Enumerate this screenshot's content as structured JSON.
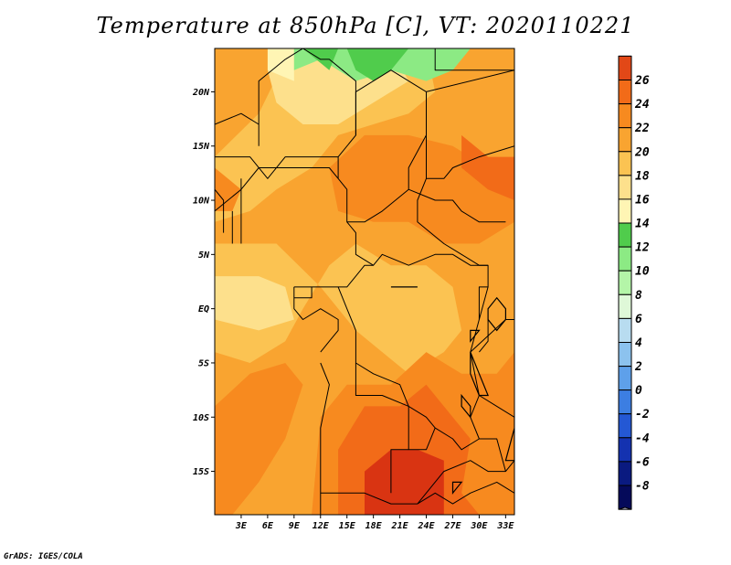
{
  "title": "Temperature at 850hPa [C], VT: 2020110221",
  "credit": "GrADS: IGES/COLA",
  "map": {
    "lon_range": [
      0,
      34
    ],
    "lat_range": [
      -19,
      24
    ],
    "lon_ticks": [
      {
        "value": 3,
        "label": "3E"
      },
      {
        "value": 6,
        "label": "6E"
      },
      {
        "value": 9,
        "label": "9E"
      },
      {
        "value": 12,
        "label": "12E"
      },
      {
        "value": 15,
        "label": "15E"
      },
      {
        "value": 18,
        "label": "18E"
      },
      {
        "value": 21,
        "label": "21E"
      },
      {
        "value": 24,
        "label": "24E"
      },
      {
        "value": 27,
        "label": "27E"
      },
      {
        "value": 30,
        "label": "30E"
      },
      {
        "value": 33,
        "label": "33E"
      }
    ],
    "lat_ticks": [
      {
        "value": 20,
        "label": "20N"
      },
      {
        "value": 15,
        "label": "15N"
      },
      {
        "value": 10,
        "label": "10N"
      },
      {
        "value": 5,
        "label": "5N"
      },
      {
        "value": 0,
        "label": "EQ"
      },
      {
        "value": -5,
        "label": "5S"
      },
      {
        "value": -10,
        "label": "10S"
      },
      {
        "value": -15,
        "label": "15S"
      }
    ],
    "regions": [
      {
        "level": 20,
        "color": "#f9a430",
        "points": [
          [
            0,
            24
          ],
          [
            34,
            24
          ],
          [
            34,
            -19
          ],
          [
            0,
            -19
          ]
        ]
      },
      {
        "level": 18,
        "color": "#fbc352",
        "points": [
          [
            0,
            14
          ],
          [
            5,
            18
          ],
          [
            8,
            23
          ],
          [
            16,
            24
          ],
          [
            24,
            24
          ],
          [
            25,
            20
          ],
          [
            22,
            18
          ],
          [
            18,
            17
          ],
          [
            14,
            16
          ],
          [
            11,
            13
          ],
          [
            7,
            11
          ],
          [
            4,
            9
          ],
          [
            0,
            8
          ]
        ]
      },
      {
        "level": 16,
        "color": "#fde08c",
        "points": [
          [
            6,
            22
          ],
          [
            9,
            24
          ],
          [
            20,
            24
          ],
          [
            22,
            21
          ],
          [
            18,
            19
          ],
          [
            14,
            17
          ],
          [
            10,
            17
          ],
          [
            7,
            19
          ]
        ]
      },
      {
        "level": 18,
        "color": "#fbc352",
        "points": [
          [
            0,
            6
          ],
          [
            7,
            6
          ],
          [
            12,
            2
          ],
          [
            16,
            -2
          ],
          [
            19,
            -4
          ],
          [
            22,
            -6
          ],
          [
            26,
            -4
          ],
          [
            28,
            -2
          ],
          [
            27,
            2
          ],
          [
            24,
            4
          ],
          [
            20,
            4
          ],
          [
            16,
            6
          ],
          [
            13,
            4
          ],
          [
            10,
            0
          ],
          [
            8,
            -3
          ],
          [
            4,
            -5
          ],
          [
            0,
            -4
          ]
        ]
      },
      {
        "level": 16,
        "color": "#fde08c",
        "points": [
          [
            0,
            3
          ],
          [
            5,
            3
          ],
          [
            8,
            2
          ],
          [
            9,
            -1
          ],
          [
            5,
            -2
          ],
          [
            0,
            -1
          ]
        ]
      },
      {
        "level": 22,
        "color": "#f78a1f",
        "points": [
          [
            13,
            13
          ],
          [
            17,
            16
          ],
          [
            22,
            16
          ],
          [
            27,
            15
          ],
          [
            31,
            13
          ],
          [
            34,
            13
          ],
          [
            34,
            8
          ],
          [
            30,
            6
          ],
          [
            26,
            6
          ],
          [
            22,
            8
          ],
          [
            18,
            8
          ],
          [
            14,
            9
          ]
        ]
      },
      {
        "level": 24,
        "color": "#f26b18",
        "points": [
          [
            28,
            16
          ],
          [
            31,
            14
          ],
          [
            34,
            14
          ],
          [
            34,
            10
          ],
          [
            31,
            11
          ],
          [
            28,
            13
          ]
        ]
      },
      {
        "level": 22,
        "color": "#f78a1f",
        "points": [
          [
            0,
            13
          ],
          [
            3,
            11
          ],
          [
            2,
            9
          ],
          [
            0,
            9
          ]
        ]
      },
      {
        "level": 22,
        "color": "#f78a1f",
        "points": [
          [
            0,
            -9
          ],
          [
            4,
            -6
          ],
          [
            8,
            -5
          ],
          [
            10,
            -7
          ],
          [
            8,
            -12
          ],
          [
            5,
            -16
          ],
          [
            2,
            -19
          ],
          [
            0,
            -19
          ]
        ]
      },
      {
        "level": 22,
        "color": "#f78a1f",
        "points": [
          [
            11,
            -19
          ],
          [
            12,
            -10
          ],
          [
            15,
            -7
          ],
          [
            20,
            -7
          ],
          [
            24,
            -4
          ],
          [
            28,
            -6
          ],
          [
            32,
            -6
          ],
          [
            34,
            -4
          ],
          [
            34,
            -19
          ]
        ]
      },
      {
        "level": 24,
        "color": "#f26b18",
        "points": [
          [
            14,
            -19
          ],
          [
            14,
            -13
          ],
          [
            17,
            -9
          ],
          [
            21,
            -9
          ],
          [
            24,
            -7
          ],
          [
            29,
            -12
          ],
          [
            28,
            -17
          ],
          [
            30,
            -19
          ]
        ]
      },
      {
        "level": 26,
        "color": "#d93412",
        "points": [
          [
            17,
            -19
          ],
          [
            17,
            -15
          ],
          [
            20,
            -13
          ],
          [
            23,
            -13
          ],
          [
            26,
            -14
          ],
          [
            26,
            -19
          ]
        ]
      },
      {
        "level": 14,
        "color": "#fff5b4",
        "points": [
          [
            6,
            24
          ],
          [
            9,
            24
          ],
          [
            9,
            21
          ],
          [
            6,
            22
          ]
        ]
      },
      {
        "level": 12,
        "color": "#8cea84",
        "points": [
          [
            9,
            24
          ],
          [
            29,
            24
          ],
          [
            27,
            22
          ],
          [
            24,
            21
          ],
          [
            20,
            22
          ],
          [
            16,
            21
          ],
          [
            12,
            23
          ],
          [
            9,
            22
          ]
        ]
      },
      {
        "level": 10,
        "color": "#50cc4c",
        "points": [
          [
            10,
            24
          ],
          [
            14,
            24
          ],
          [
            13,
            22
          ]
        ]
      },
      {
        "level": 10,
        "color": "#50cc4c",
        "points": [
          [
            15,
            24
          ],
          [
            22,
            24
          ],
          [
            20,
            22
          ],
          [
            18,
            21
          ],
          [
            16,
            22
          ]
        ]
      }
    ],
    "borders": [
      [
        [
          8,
          23
        ],
        [
          10,
          24
        ],
        [
          12,
          23
        ],
        [
          13,
          23
        ],
        [
          16,
          21
        ],
        [
          16,
          16
        ],
        [
          14,
          14
        ],
        [
          14,
          12
        ],
        [
          15,
          11
        ],
        [
          15,
          8
        ],
        [
          16,
          7
        ],
        [
          16,
          5
        ],
        [
          18,
          4
        ],
        [
          19,
          5
        ],
        [
          22,
          4
        ],
        [
          25,
          5
        ],
        [
          27,
          5
        ],
        [
          29,
          4
        ],
        [
          31,
          4
        ],
        [
          31,
          2
        ],
        [
          30,
          -1
        ],
        [
          29,
          -4
        ],
        [
          30,
          -8
        ],
        [
          32,
          -9
        ],
        [
          34,
          -10
        ]
      ],
      [
        [
          0,
          9
        ],
        [
          3,
          11
        ],
        [
          5,
          13
        ],
        [
          8,
          13
        ],
        [
          11,
          13
        ],
        [
          13,
          13
        ],
        [
          14,
          12
        ]
      ],
      [
        [
          0,
          14
        ],
        [
          4,
          14
        ],
        [
          6,
          12
        ],
        [
          8,
          14
        ],
        [
          12,
          14
        ],
        [
          14,
          14
        ]
      ],
      [
        [
          5,
          15
        ],
        [
          5,
          21
        ],
        [
          8,
          23
        ]
      ],
      [
        [
          0,
          17
        ],
        [
          3,
          18
        ],
        [
          5,
          17
        ]
      ],
      [
        [
          16,
          16
        ],
        [
          16,
          20
        ],
        [
          20,
          22
        ],
        [
          24,
          20
        ],
        [
          24,
          16
        ],
        [
          22,
          13
        ],
        [
          22,
          11
        ],
        [
          19,
          9
        ],
        [
          17,
          8
        ],
        [
          15,
          8
        ]
      ],
      [
        [
          24,
          20
        ],
        [
          34,
          22
        ]
      ],
      [
        [
          24,
          16
        ],
        [
          24,
          12
        ],
        [
          23,
          10
        ],
        [
          23,
          8
        ],
        [
          26,
          6
        ],
        [
          28,
          5
        ],
        [
          30,
          4
        ],
        [
          31,
          4
        ]
      ],
      [
        [
          24,
          12
        ],
        [
          26,
          12
        ],
        [
          27,
          13
        ],
        [
          30,
          14
        ],
        [
          34,
          15
        ]
      ],
      [
        [
          22,
          11
        ],
        [
          25,
          10
        ],
        [
          27,
          10
        ],
        [
          28,
          9
        ],
        [
          30,
          8
        ],
        [
          33,
          8
        ]
      ],
      [
        [
          2,
          6
        ],
        [
          2,
          9
        ]
      ],
      [
        [
          3,
          6
        ],
        [
          3,
          12
        ]
      ],
      [
        [
          0,
          11
        ],
        [
          1,
          10
        ],
        [
          1,
          7
        ]
      ],
      [
        [
          9,
          2
        ],
        [
          11,
          2
        ],
        [
          14,
          2
        ],
        [
          15,
          2
        ],
        [
          16,
          3
        ],
        [
          17,
          4
        ],
        [
          18,
          4
        ]
      ],
      [
        [
          9,
          2
        ],
        [
          9,
          0
        ],
        [
          10,
          -1
        ],
        [
          12,
          0
        ],
        [
          14,
          -1
        ],
        [
          14,
          -2
        ],
        [
          13,
          -3
        ],
        [
          12,
          -4
        ]
      ],
      [
        [
          11,
          2
        ],
        [
          11,
          1
        ],
        [
          9,
          1
        ]
      ],
      [
        [
          14,
          2
        ],
        [
          15,
          0
        ],
        [
          16,
          -2
        ],
        [
          16,
          -5
        ],
        [
          18,
          -6
        ],
        [
          21,
          -7
        ],
        [
          22,
          -9
        ],
        [
          24,
          -10
        ],
        [
          25,
          -11
        ],
        [
          27,
          -12
        ],
        [
          28,
          -13
        ],
        [
          30,
          -12
        ],
        [
          29,
          -10
        ],
        [
          30,
          -8
        ]
      ],
      [
        [
          12,
          -5
        ],
        [
          13,
          -7
        ],
        [
          12,
          -11
        ],
        [
          12,
          -14
        ],
        [
          12,
          -17
        ],
        [
          14,
          -17
        ],
        [
          17,
          -17
        ],
        [
          20,
          -18
        ],
        [
          23,
          -18
        ],
        [
          25,
          -17
        ],
        [
          27,
          -18
        ],
        [
          29,
          -17
        ],
        [
          32,
          -16
        ],
        [
          34,
          -17
        ]
      ],
      [
        [
          16,
          -5
        ],
        [
          16,
          -8
        ],
        [
          19,
          -8
        ],
        [
          22,
          -9
        ],
        [
          22,
          -13
        ],
        [
          24,
          -13
        ],
        [
          25,
          -11
        ]
      ],
      [
        [
          22,
          -13
        ],
        [
          20,
          -13
        ],
        [
          20,
          -17
        ]
      ],
      [
        [
          23,
          -18
        ],
        [
          26,
          -15
        ],
        [
          29,
          -14
        ],
        [
          31,
          -15
        ],
        [
          33,
          -15
        ],
        [
          32,
          -12
        ],
        [
          30,
          -12
        ]
      ],
      [
        [
          33,
          -15
        ],
        [
          34,
          -14
        ]
      ],
      [
        [
          29,
          -4
        ],
        [
          33,
          -1
        ],
        [
          34,
          -1
        ]
      ],
      [
        [
          30,
          -1
        ],
        [
          30,
          2
        ],
        [
          31,
          2
        ]
      ],
      [
        [
          31,
          -1
        ],
        [
          31,
          -3
        ],
        [
          30,
          -4
        ]
      ],
      [
        [
          25,
          24
        ],
        [
          25,
          22
        ],
        [
          34,
          22
        ]
      ],
      [
        [
          12,
          -17
        ],
        [
          12,
          -19
        ]
      ]
    ],
    "lakes": [
      [
        [
          32,
          1
        ],
        [
          33,
          0
        ],
        [
          33,
          -1
        ],
        [
          32,
          -2
        ],
        [
          31,
          -1
        ],
        [
          31,
          0
        ]
      ],
      [
        [
          29,
          -4
        ],
        [
          30,
          -6
        ],
        [
          31,
          -8
        ],
        [
          30,
          -8
        ],
        [
          29,
          -6
        ]
      ],
      [
        [
          34,
          -10
        ],
        [
          34,
          -14
        ],
        [
          33,
          -14
        ],
        [
          34,
          -11
        ]
      ],
      [
        [
          28,
          -8
        ],
        [
          29,
          -9
        ],
        [
          29,
          -10
        ],
        [
          28,
          -9
        ]
      ],
      [
        [
          29,
          -2
        ],
        [
          30,
          -2
        ],
        [
          29,
          -3
        ]
      ],
      [
        [
          20,
          2
        ],
        [
          22,
          2
        ],
        [
          23,
          2
        ],
        [
          21,
          2
        ]
      ],
      [
        [
          27,
          -17
        ],
        [
          28,
          -16
        ],
        [
          27,
          -16
        ]
      ]
    ]
  },
  "colorbar": {
    "levels": [
      "26",
      "24",
      "22",
      "20",
      "18",
      "16",
      "14",
      "12",
      "10",
      "8",
      "6",
      "4",
      "2",
      "0",
      "-2",
      "-4",
      "-6",
      "-8"
    ],
    "colors": [
      "#c82a0f",
      "#e24817",
      "#f26b18",
      "#f78a1f",
      "#f9a430",
      "#fbc352",
      "#fde08c",
      "#fff5b4",
      "#50cc4c",
      "#8cea84",
      "#b4f5a8",
      "#dff8d8",
      "#b8dcf0",
      "#8cc2ee",
      "#5ea0ea",
      "#3c7ee2",
      "#2458d4",
      "#1432b0",
      "#0a1a80",
      "#050a5a",
      "#dcdcf8"
    ]
  }
}
